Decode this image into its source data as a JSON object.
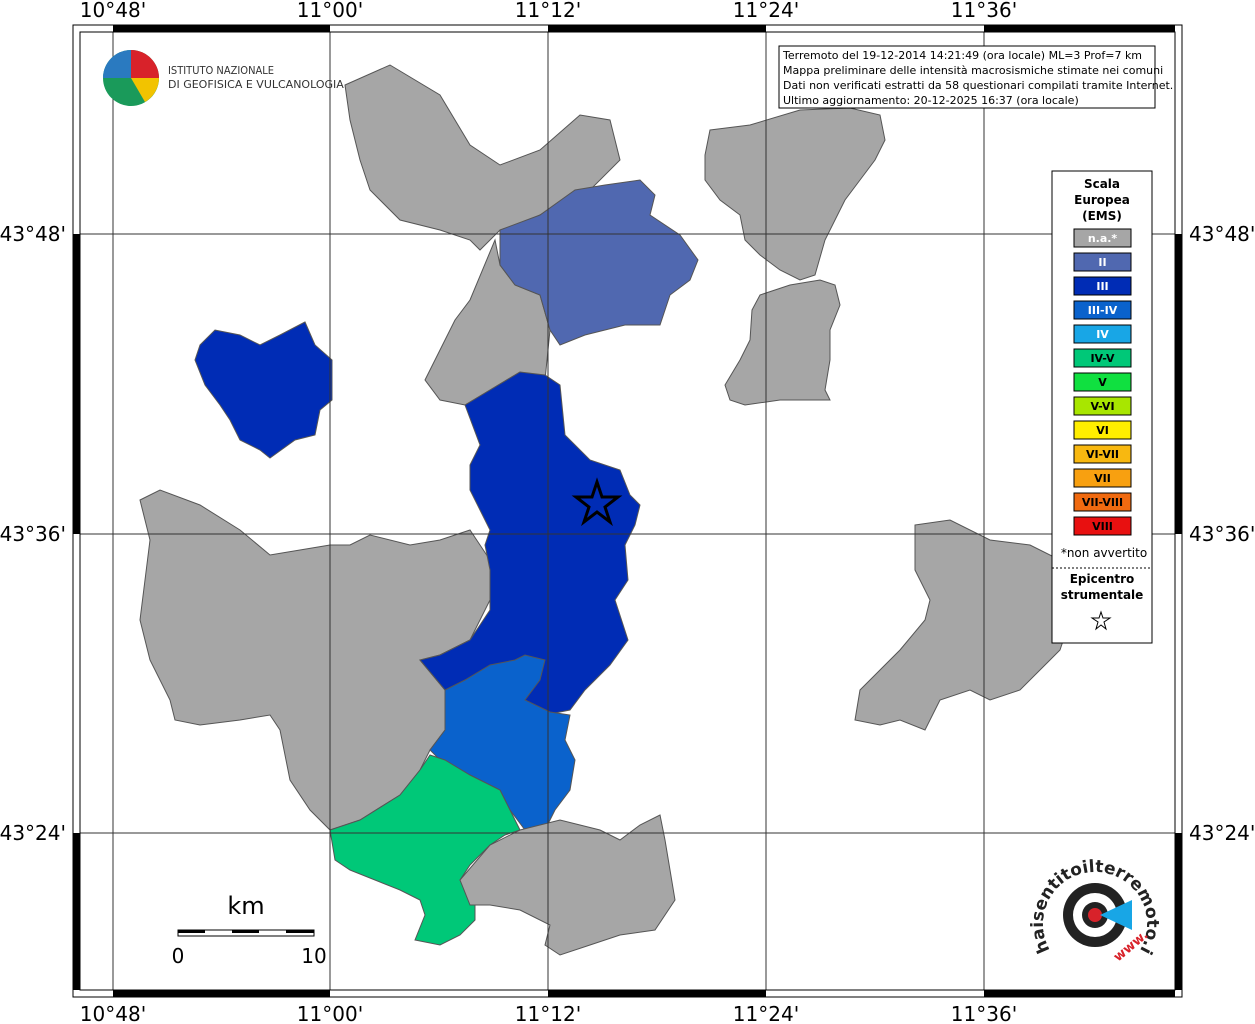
{
  "map": {
    "lon_labels": [
      "10°48'",
      "11°00'",
      "11°12'",
      "11°24'",
      "11°36'"
    ],
    "lat_labels": [
      "43°48'",
      "43°36'",
      "43°24'"
    ],
    "ingv_logo": {
      "line1": "ISTITUTO NAZIONALE",
      "line2": "DI GEOFISICA E VULCANOLOGIA"
    },
    "info": [
      "Terremoto del 19-12-2014 14:21:49 (ora locale) ML=3 Prof=7 km",
      "Mappa preliminare delle intensità macrosismiche stimate nei comuni",
      "Dati non verificati estratti da 58 questionari compilati tramite Internet.",
      "Ultimo aggiornamento: 20-12-2025 16:37 (ora locale)"
    ],
    "legend": {
      "title": [
        "Scala",
        "Europea",
        "(EMS)"
      ],
      "items": [
        {
          "label": "n.a.*",
          "color": "#a6a6a6"
        },
        {
          "label": "II",
          "color": "#5068b0"
        },
        {
          "label": "III",
          "color": "#002cb5"
        },
        {
          "label": "III-IV",
          "color": "#0a62cc"
        },
        {
          "label": "IV",
          "color": "#18a6e6"
        },
        {
          "label": "IV-V",
          "color": "#00c878"
        },
        {
          "label": "V",
          "color": "#10e040"
        },
        {
          "label": "V-VI",
          "color": "#a8e600"
        },
        {
          "label": "VI",
          "color": "#ffee00"
        },
        {
          "label": "VI-VII",
          "color": "#f8b810"
        },
        {
          "label": "VII",
          "color": "#f8a010"
        },
        {
          "label": "VII-VIII",
          "color": "#f06a10"
        },
        {
          "label": "VIII",
          "color": "#e81010"
        }
      ],
      "note": "*non avvertito",
      "epicenter": [
        "Epicentro",
        "strumentale"
      ]
    },
    "scale_bar": {
      "unit": "km",
      "start": "0",
      "end": "10"
    },
    "hsit_logo": {
      "text": "haisentitoilterremoto.it",
      "prefix": "www."
    }
  }
}
